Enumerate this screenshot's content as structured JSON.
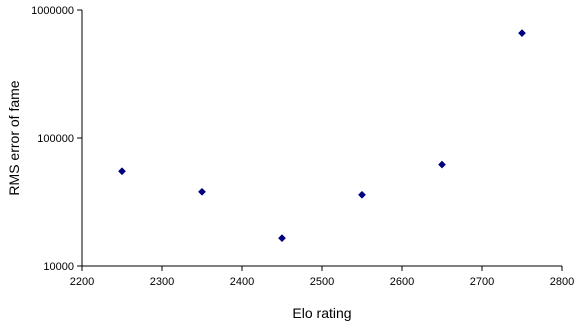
{
  "chart_data": {
    "type": "scatter",
    "title": "",
    "xlabel": "Elo rating",
    "ylabel": "RMS error of fame",
    "xlim": [
      2200,
      2800
    ],
    "ylim": [
      10000,
      1000000
    ],
    "yscale": "log",
    "grid": false,
    "legend": "none",
    "marker": "diamond",
    "marker_color": "#000080",
    "x_ticks": [
      2200,
      2300,
      2400,
      2500,
      2600,
      2700,
      2800
    ],
    "x_tick_labels": [
      "2200",
      "2300",
      "2400",
      "2500",
      "2600",
      "2700",
      "2800"
    ],
    "y_ticks": [
      10000,
      100000,
      1000000
    ],
    "y_tick_labels": [
      "10000",
      "100000",
      "1000000"
    ],
    "series": [
      {
        "x": [
          2250,
          2350,
          2450,
          2550,
          2650,
          2750
        ],
        "y": [
          55000,
          38000,
          16500,
          36000,
          62000,
          660000
        ]
      }
    ]
  }
}
